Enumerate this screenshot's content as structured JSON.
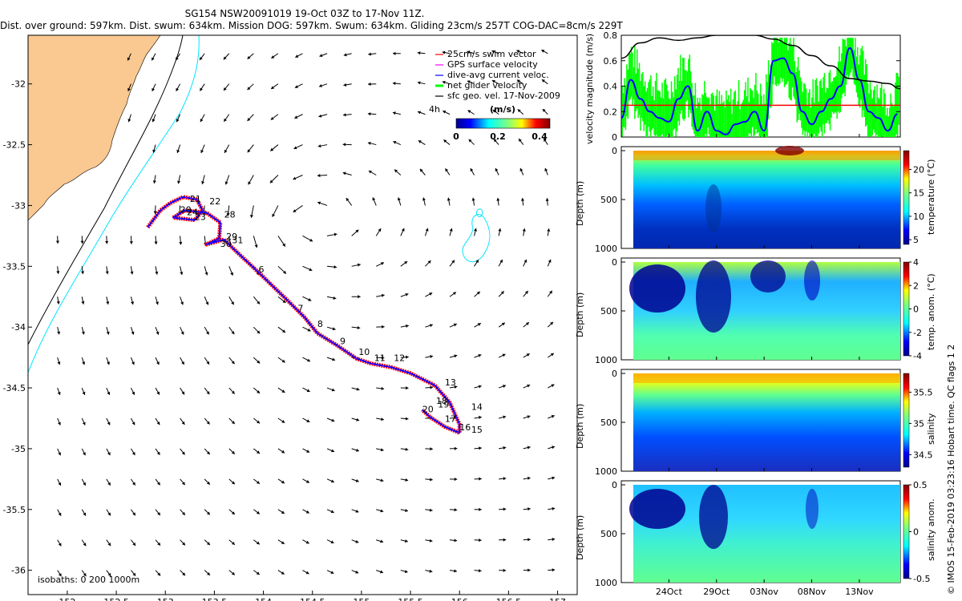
{
  "header": {
    "line1": "SG154 NSW20091019 19-Oct 03Z to 17-Nov 11Z.",
    "line2": "Dist. over ground: 597km. Dist. swum: 634km. Mission DOG: 597km. Swum: 634km. Gliding 23cm/s 257T COG-DAC=8cm/s 229T"
  },
  "credit": "© IMOS 15-Feb-2019 03:23:16 Hobart time. QC flags 1 2",
  "colors": {
    "land": "#fac891",
    "isobath200": "#000000",
    "isobath1000": "#00e5ff",
    "swim": "#ff0000",
    "gps": "#ff00ff",
    "dac": "#0000ff",
    "net": "#00ff00",
    "speed_line": "#0000ff",
    "net_line": "#00ff00",
    "threshold_line": "#ff0000",
    "distance_line": "#000000"
  },
  "chart_data": [
    {
      "type": "map",
      "name": "glider-track-map",
      "xlim": [
        151.6,
        157.2
      ],
      "ylim": [
        -36.2,
        -31.6
      ],
      "x_ticks": [
        "152",
        "152.5",
        "153",
        "153.5",
        "154",
        "154.5",
        "155",
        "155.5",
        "156",
        "156.5",
        "157"
      ],
      "y_ticks": [
        "-32",
        "-32.5",
        "-33",
        "-33.5",
        "-34",
        "-34.5",
        "-35",
        "-35.5",
        "-36"
      ],
      "legend": {
        "items": [
          "25cm/s swim vector",
          "GPS surface velocity",
          "dive-avg current veloc.",
          "net glider velocity",
          "sfc geo. vel. 17-Nov-2009"
        ],
        "note": "4h",
        "colorbar_title": "(m/s)",
        "colorbar_ticks": [
          "0",
          "0.2",
          "0.4"
        ],
        "colorbar_range": [
          0,
          0.45
        ]
      },
      "isobaths_label": "isobaths: 0   200   1000m",
      "track": [
        [
          152.82,
          -33.18
        ],
        [
          152.95,
          -33.04
        ],
        [
          153.05,
          -32.98
        ],
        [
          153.18,
          -32.93
        ],
        [
          153.32,
          -32.95
        ],
        [
          153.38,
          -33.04
        ],
        [
          153.3,
          -33.12
        ],
        [
          153.08,
          -33.1
        ],
        [
          153.2,
          -33.04
        ],
        [
          153.42,
          -33.06
        ],
        [
          153.56,
          -33.14
        ],
        [
          153.55,
          -33.27
        ],
        [
          153.42,
          -33.32
        ],
        [
          153.6,
          -33.28
        ],
        [
          153.7,
          -33.36
        ],
        [
          153.95,
          -33.55
        ],
        [
          154.22,
          -33.76
        ],
        [
          154.42,
          -33.92
        ],
        [
          154.55,
          -34.05
        ],
        [
          154.75,
          -34.15
        ],
        [
          154.95,
          -34.26
        ],
        [
          155.1,
          -34.3
        ],
        [
          155.3,
          -34.33
        ],
        [
          155.5,
          -34.38
        ],
        [
          155.75,
          -34.48
        ],
        [
          155.9,
          -34.62
        ],
        [
          156.0,
          -34.8
        ],
        [
          156.0,
          -34.87
        ],
        [
          155.85,
          -34.82
        ],
        [
          155.7,
          -34.74
        ],
        [
          155.62,
          -34.68
        ]
      ],
      "day_labels": [
        {
          "t": "20",
          "lon": 153.15,
          "lat": -33.06
        },
        {
          "t": "21",
          "lon": 153.25,
          "lat": -32.97
        },
        {
          "t": "22",
          "lon": 153.45,
          "lat": -32.99
        },
        {
          "t": "23",
          "lon": 153.3,
          "lat": -33.12
        },
        {
          "t": "24",
          "lon": 153.22,
          "lat": -33.08
        },
        {
          "t": "28",
          "lon": 153.6,
          "lat": -33.1
        },
        {
          "t": "29",
          "lon": 153.62,
          "lat": -33.28
        },
        {
          "t": "30",
          "lon": 153.56,
          "lat": -33.34
        },
        {
          "t": "31",
          "lon": 153.68,
          "lat": -33.31
        },
        {
          "t": "6",
          "lon": 153.95,
          "lat": -33.55
        },
        {
          "t": "7",
          "lon": 154.35,
          "lat": -33.87
        },
        {
          "t": "8",
          "lon": 154.55,
          "lat": -34.0
        },
        {
          "t": "9",
          "lon": 154.78,
          "lat": -34.14
        },
        {
          "t": "10",
          "lon": 154.97,
          "lat": -34.23
        },
        {
          "t": "11",
          "lon": 155.13,
          "lat": -34.28
        },
        {
          "t": "12",
          "lon": 155.33,
          "lat": -34.28
        },
        {
          "t": "13",
          "lon": 155.85,
          "lat": -34.48
        },
        {
          "t": "14",
          "lon": 156.12,
          "lat": -34.68
        },
        {
          "t": "15",
          "lon": 156.12,
          "lat": -34.87
        },
        {
          "t": "16",
          "lon": 156.0,
          "lat": -34.85
        },
        {
          "t": "17",
          "lon": 155.85,
          "lat": -34.78
        },
        {
          "t": "18",
          "lon": 155.76,
          "lat": -34.63
        },
        {
          "t": "19",
          "lon": 155.78,
          "lat": -34.66
        },
        {
          "t": "20",
          "lon": 155.62,
          "lat": -34.7
        }
      ]
    },
    {
      "type": "line",
      "name": "velocity-magnitude-panel",
      "ylabel": "velocity magnitude (m/s)",
      "ylim": [
        0,
        0.8
      ],
      "y_ticks": [
        "0",
        "0.2",
        "0.4",
        "0.6",
        "0.8"
      ],
      "x_range_days": [
        0,
        29.3
      ],
      "threshold": 0.25,
      "series": [
        {
          "name": "dive-avg current speed",
          "x": [
            0,
            1,
            2,
            3,
            4,
            5,
            6,
            7,
            8,
            9,
            10,
            11,
            12,
            13,
            14,
            15,
            16,
            17,
            18,
            19,
            20,
            21,
            22,
            23,
            24,
            25,
            26,
            27,
            28,
            29
          ],
          "values": [
            0.15,
            0.45,
            0.3,
            0.2,
            0.15,
            0.12,
            0.3,
            0.4,
            0.05,
            0.2,
            0.05,
            0.02,
            0.1,
            0.12,
            0.2,
            0.05,
            0.6,
            0.62,
            0.5,
            0.2,
            0.1,
            0.2,
            0.3,
            0.4,
            0.7,
            0.45,
            0.2,
            0.15,
            0.05,
            0.18
          ]
        },
        {
          "name": "cumulative distance (scaled)",
          "x": [
            0,
            2,
            4,
            6,
            8,
            10,
            12,
            14,
            16,
            18,
            20,
            22,
            24,
            26,
            28,
            29.3
          ],
          "values": [
            0.62,
            0.74,
            0.78,
            0.76,
            0.78,
            0.8,
            0.8,
            0.8,
            0.77,
            0.72,
            0.64,
            0.56,
            0.46,
            0.44,
            0.42,
            0.38
          ]
        }
      ]
    },
    {
      "type": "heatmap",
      "name": "temperature-section",
      "ylabel": "Depth (m)",
      "y_ticks": [
        "0",
        "500",
        "1000"
      ],
      "colorbar_label": "temperature (°C)",
      "colorbar_ticks": [
        "5",
        "10",
        "15",
        "20"
      ],
      "clim": [
        4,
        24
      ]
    },
    {
      "type": "heatmap",
      "name": "temperature-anomaly-section",
      "ylabel": "Depth (m)",
      "y_ticks": [
        "0",
        "500",
        "1000"
      ],
      "colorbar_label": "temp. anom. (°C)",
      "colorbar_ticks": [
        "-4",
        "-2",
        "0",
        "2",
        "4"
      ],
      "clim": [
        -4,
        4
      ]
    },
    {
      "type": "heatmap",
      "name": "salinity-section",
      "ylabel": "Depth (m)",
      "y_ticks": [
        "0",
        "500",
        "1000"
      ],
      "colorbar_label": "salinity",
      "colorbar_ticks": [
        "34.5",
        "35",
        "35.5"
      ],
      "clim": [
        34.3,
        35.8
      ]
    },
    {
      "type": "heatmap",
      "name": "salinity-anomaly-section",
      "ylabel": "Depth (m)",
      "y_ticks": [
        "0",
        "500",
        "1000"
      ],
      "colorbar_label": "salinity anom.",
      "colorbar_ticks": [
        "-0.5",
        "0",
        "0.5"
      ],
      "clim": [
        -0.5,
        0.5
      ],
      "x_ticks": [
        "24Oct",
        "29Oct",
        "03Nov",
        "08Nov",
        "13Nov"
      ],
      "x_tick_days": [
        5,
        10,
        15,
        20,
        25
      ]
    }
  ]
}
